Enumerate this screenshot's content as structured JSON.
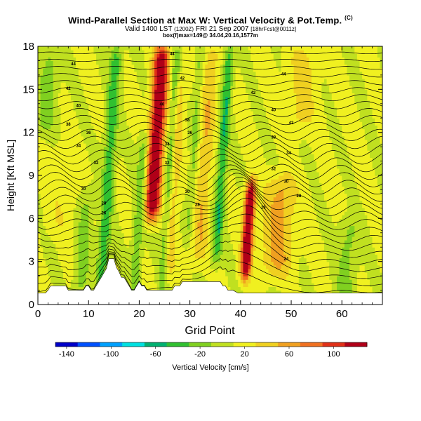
{
  "header": {
    "title": "Wind-Parallel Section at Max W: Vertical Velocity & Pot.Temp.",
    "copyright": "(C)",
    "valid_prefix": "Valid 1400 LST",
    "valid_zulu": "(1200Z)",
    "valid_date": "FRI 21 Sep 2007",
    "valid_model": "[18hrFcst@0011z]",
    "box_info": "box(f)max=149@ 34.04,20.16,1577m"
  },
  "chart_data": {
    "type": "heatmap",
    "title": "Wind-Parallel Section at Max W: Vertical Velocity & Pot.Temp.",
    "xlabel": "Grid Point",
    "ylabel": "Height [Kft MSL]",
    "xlim": [
      0,
      68
    ],
    "ylim": [
      0,
      18
    ],
    "x_ticks": [
      0,
      10,
      20,
      30,
      40,
      50,
      60
    ],
    "y_ticks": [
      0,
      3,
      6,
      9,
      12,
      15,
      18
    ],
    "colorbar": {
      "label": "Vertical Velocity [cm/s]",
      "min": -150,
      "max": 130,
      "tick_values": [
        -140,
        -100,
        -60,
        -20,
        20,
        60,
        100
      ],
      "tick_labels": [
        "-140",
        "-100",
        "-60",
        "-20",
        "20",
        "60",
        "100"
      ],
      "colors": [
        "#0000c8",
        "#0050ff",
        "#00a0ff",
        "#00e0e0",
        "#00b070",
        "#30c030",
        "#80d020",
        "#c0e020",
        "#f0f020",
        "#f0d020",
        "#f0a020",
        "#f07020",
        "#e03018",
        "#b00018"
      ]
    },
    "updrafts": [
      {
        "x": 23.5,
        "peak": 130,
        "width": 1.5,
        "z_low": 6,
        "z_high": 18
      },
      {
        "x": 41.5,
        "peak": 145,
        "width": 1.0,
        "z_low": 2,
        "z_high": 8.5
      },
      {
        "x": 47.5,
        "peak": 45,
        "width": 3.0,
        "z_low": 2,
        "z_high": 9
      },
      {
        "x": 33,
        "peak": 35,
        "width": 1.5,
        "z_low": 3,
        "z_high": 18
      },
      {
        "x": 27,
        "peak": 30,
        "width": 1.2,
        "z_low": 2,
        "z_high": 16
      },
      {
        "x": 52,
        "peak": 25,
        "width": 3.0,
        "z_low": 12,
        "z_high": 18
      },
      {
        "x": 5,
        "peak": 15,
        "width": 3.0,
        "z_low": 5,
        "z_high": 11
      }
    ],
    "downdrafts": [
      {
        "x": 14,
        "peak": -55,
        "width": 1.2,
        "z_low": 1,
        "z_high": 18
      },
      {
        "x": 20,
        "peak": -40,
        "width": 1.0,
        "z_low": 1,
        "z_high": 12
      },
      {
        "x": 26,
        "peak": -40,
        "width": 0.8,
        "z_low": 1,
        "z_high": 18
      },
      {
        "x": 36.5,
        "peak": -60,
        "width": 1.0,
        "z_low": 3,
        "z_high": 18
      },
      {
        "x": 31,
        "peak": -30,
        "width": 0.8,
        "z_low": 5,
        "z_high": 18
      },
      {
        "x": 9,
        "peak": -30,
        "width": 1.5,
        "z_low": 0.5,
        "z_high": 8
      },
      {
        "x": 61,
        "peak": -30,
        "width": 2.0,
        "z_low": 0,
        "z_high": 6
      },
      {
        "x": 2,
        "peak": -30,
        "width": 2.0,
        "z_low": 12,
        "z_high": 18
      }
    ],
    "terrain": {
      "x": [
        0,
        0.5,
        1,
        1.5,
        2,
        2.5,
        3,
        3.5,
        4,
        4.5,
        5,
        5.5,
        6,
        6.5,
        7,
        7.5,
        8,
        8.5,
        9,
        9.5,
        10,
        10.5,
        11,
        11.5,
        12,
        12.5,
        13,
        13.5,
        14,
        14.5,
        15,
        15.5,
        16,
        16.5,
        17,
        17.5,
        18,
        18.5,
        19,
        19.5,
        20,
        20.5,
        21,
        21.5,
        22,
        22.5,
        23,
        23.5,
        24,
        24.5,
        25,
        25.5,
        26,
        26.5,
        27,
        27.5,
        28,
        28.5,
        29,
        29.5,
        30,
        30.5,
        31,
        31.5,
        32,
        32.5,
        33,
        33.5,
        34,
        34.5,
        35,
        35.5,
        36,
        36.5,
        37,
        37.5,
        38,
        38.5,
        39,
        39.5,
        40,
        40.5,
        41,
        41.5,
        42,
        42.5,
        43,
        43.5,
        44,
        44.5,
        45,
        45.5,
        46,
        46.5,
        47,
        47.5,
        48,
        48.5,
        49,
        49.5,
        50,
        50.5,
        51,
        51.5,
        52,
        52.5,
        53,
        53.5,
        54,
        54.5,
        55,
        55.5,
        56,
        56.5,
        57,
        57.5,
        58,
        58.5,
        59,
        59.5,
        60,
        60.5,
        61,
        61.5,
        62,
        62.5,
        63,
        63.5,
        64,
        64.5,
        65,
        65.5,
        66,
        66.5,
        67,
        67.5,
        68
      ],
      "z": [
        0.8,
        0.8,
        0.8,
        0.8,
        1.0,
        1.3,
        1.3,
        1.3,
        1.3,
        1.3,
        1.3,
        1.3,
        1.0,
        1.0,
        1.0,
        1.0,
        1.0,
        1.0,
        1.0,
        1.3,
        1.3,
        1.0,
        1.0,
        1.3,
        1.6,
        1.9,
        2.2,
        2.5,
        3.2,
        3.2,
        3.2,
        2.6,
        2.3,
        1.9,
        1.9,
        1.6,
        1.3,
        1.0,
        1.0,
        1.3,
        1.6,
        1.3,
        1.3,
        1.0,
        1.0,
        1.0,
        1.0,
        1.0,
        1.0,
        1.0,
        1.0,
        1.0,
        1.0,
        1.0,
        1.3,
        1.3,
        1.3,
        1.6,
        1.6,
        1.6,
        1.6,
        1.6,
        1.6,
        1.6,
        1.6,
        1.6,
        1.6,
        1.6,
        1.6,
        1.6,
        1.6,
        1.6,
        1.6,
        1.3,
        1.3,
        1.0,
        1.0,
        1.0,
        0.9,
        0.8,
        0.8,
        0.8,
        0.8,
        0.8,
        0.8,
        0.8,
        0.8,
        0.8,
        0.8,
        0.8,
        0.8,
        0.8,
        0.8,
        0.8,
        0.8,
        0.8,
        0.8,
        0.8,
        0.8,
        0.8,
        0.8,
        0.8,
        0.8,
        0.8,
        0.8,
        0.8,
        0.8,
        0.8,
        0.8,
        0.8,
        0.8,
        0.8,
        0.8,
        0.8,
        0.8,
        0.8,
        0.8,
        0.8,
        0.8,
        0.8,
        0.8,
        0.8,
        0.8,
        0.8,
        0.8,
        0.8,
        0.8,
        0.8,
        0.8,
        0.8,
        0.8,
        0.8,
        0.8,
        0.8,
        0.8,
        0.8,
        0.8
      ]
    },
    "theta_contours": [
      {
        "label": "26",
        "base": 1.5,
        "spacing": 0.55,
        "label_x": 0
      },
      {
        "label": "28",
        "base": 2.0,
        "spacing": 0.55,
        "label_x": 0
      },
      {
        "label": "30",
        "base": 7.0,
        "spacing": 0.55,
        "label_x": 9.5
      },
      {
        "label": "32",
        "base": 8.2,
        "spacing": 0.55,
        "label_x": 13
      },
      {
        "label": "34",
        "base": 9.5,
        "spacing": 0.55,
        "label_x": 30.5
      },
      {
        "label": "36",
        "base": 11.5,
        "spacing": 0.55,
        "label_x": 10.5
      },
      {
        "label": "38",
        "base": 13.0,
        "spacing": 0.55,
        "label_x": 6
      },
      {
        "label": "40",
        "base": 15.0,
        "spacing": 0.55,
        "label_x": 8
      },
      {
        "label": "42",
        "base": 16.6,
        "spacing": 0.55,
        "label_x": 57.5
      },
      {
        "label": "44",
        "base": 17.6,
        "spacing": 0.55,
        "label_x": 7
      }
    ],
    "contour_labels": [
      {
        "text": "44",
        "x": 7,
        "z": 16.8
      },
      {
        "text": "42",
        "x": 6,
        "z": 15.1
      },
      {
        "text": "40",
        "x": 8,
        "z": 13.9
      },
      {
        "text": "38",
        "x": 6,
        "z": 12.6
      },
      {
        "text": "36",
        "x": 10,
        "z": 12.0
      },
      {
        "text": "34",
        "x": 8,
        "z": 11.1
      },
      {
        "text": "32",
        "x": 11.5,
        "z": 9.9
      },
      {
        "text": "30",
        "x": 9,
        "z": 8.1
      },
      {
        "text": "28",
        "x": 13,
        "z": 7.1
      },
      {
        "text": "26",
        "x": 13,
        "z": 6.4
      },
      {
        "text": "44",
        "x": 26.5,
        "z": 17.5
      },
      {
        "text": "42",
        "x": 28.5,
        "z": 15.8
      },
      {
        "text": "40",
        "x": 24.5,
        "z": 14.0
      },
      {
        "text": "38",
        "x": 29.5,
        "z": 12.9
      },
      {
        "text": "36",
        "x": 30,
        "z": 12.0
      },
      {
        "text": "34",
        "x": 25.5,
        "z": 11.2
      },
      {
        "text": "32",
        "x": 25.5,
        "z": 9.9
      },
      {
        "text": "30",
        "x": 29.5,
        "z": 7.9
      },
      {
        "text": "28",
        "x": 31.5,
        "z": 7.0
      },
      {
        "text": "44",
        "x": 48.5,
        "z": 16.1
      },
      {
        "text": "42",
        "x": 42.5,
        "z": 14.8
      },
      {
        "text": "40",
        "x": 46.5,
        "z": 13.6
      },
      {
        "text": "42",
        "x": 50,
        "z": 12.7
      },
      {
        "text": "38",
        "x": 46.5,
        "z": 11.7
      },
      {
        "text": "34",
        "x": 49.5,
        "z": 10.6
      },
      {
        "text": "32",
        "x": 46.5,
        "z": 9.5
      },
      {
        "text": "30",
        "x": 49,
        "z": 8.6
      },
      {
        "text": "28",
        "x": 51.5,
        "z": 7.6
      },
      {
        "text": "26",
        "x": 44.5,
        "z": 6.8
      },
      {
        "text": "24",
        "x": 49,
        "z": 3.2
      }
    ]
  }
}
